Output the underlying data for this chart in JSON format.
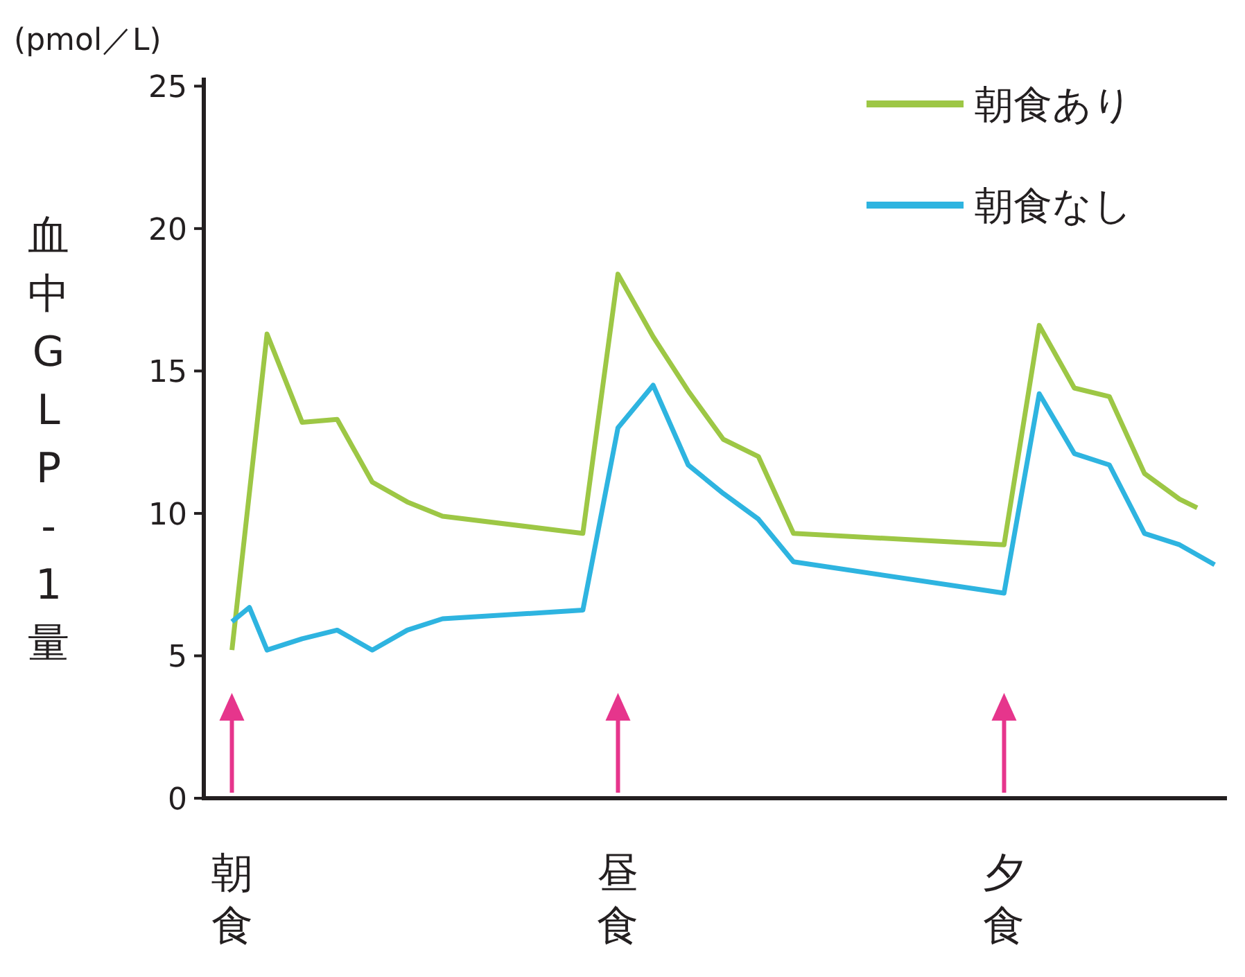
{
  "chart_data": {
    "type": "line",
    "ylabel": "血中GLP-1量",
    "annotations": [
      "(pmol／L)"
    ],
    "categories": [
      "朝食",
      null,
      null,
      null,
      null,
      null,
      null,
      null,
      null,
      null,
      null,
      null,
      null,
      null,
      null,
      null,
      null,
      null,
      null,
      null,
      null,
      null,
      "昼食",
      null,
      null,
      null,
      null,
      null,
      null,
      null,
      null,
      null,
      null,
      null,
      null,
      null,
      null,
      null,
      null,
      null,
      null,
      null,
      null,
      null,
      "夕食",
      null,
      null,
      null,
      null,
      null,
      null,
      null,
      null,
      null,
      null,
      null,
      null
    ],
    "ylim": [
      0,
      25.3
    ],
    "yticks": [
      0,
      5,
      10,
      15,
      20,
      25
    ],
    "legend": "top right",
    "series": [
      {
        "name": "朝食あり",
        "color": "#9dc745",
        "values": [
          5.2,
          null,
          16.3,
          null,
          13.2,
          null,
          13.3,
          null,
          11.1,
          null,
          10.4,
          null,
          9.9,
          null,
          null,
          null,
          null,
          null,
          null,
          null,
          9.3,
          null,
          18.4,
          null,
          16.2,
          null,
          14.3,
          null,
          12.6,
          null,
          12.0,
          null,
          9.3,
          null,
          null,
          null,
          null,
          null,
          null,
          null,
          null,
          null,
          null,
          null,
          8.9,
          null,
          16.6,
          null,
          14.4,
          null,
          14.1,
          null,
          11.4,
          null,
          10.5,
          10.2,
          null
        ]
      },
      {
        "name": "朝食なし",
        "color": "#2eb4e0",
        "values": [
          6.2,
          6.7,
          5.2,
          null,
          5.6,
          null,
          5.9,
          null,
          5.2,
          null,
          5.9,
          null,
          6.3,
          null,
          null,
          null,
          null,
          null,
          null,
          null,
          6.6,
          null,
          13.0,
          null,
          14.5,
          null,
          11.7,
          null,
          10.7,
          null,
          9.8,
          null,
          8.3,
          null,
          null,
          null,
          null,
          null,
          null,
          null,
          null,
          null,
          null,
          null,
          7.2,
          null,
          14.2,
          null,
          12.1,
          null,
          11.7,
          null,
          9.3,
          null,
          8.9,
          null,
          8.2
        ]
      }
    ]
  }
}
